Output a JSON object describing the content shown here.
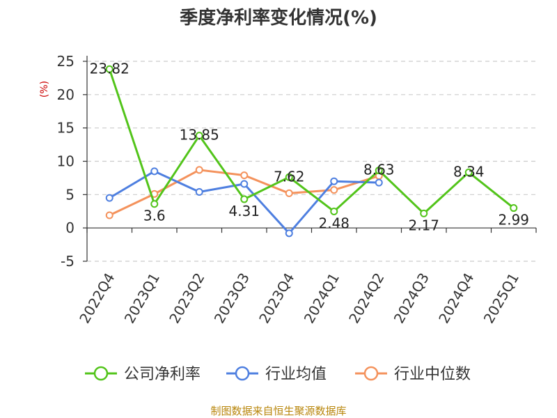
{
  "chart_data": {
    "type": "line",
    "title": "季度净利率变化情况(%)",
    "ylabel": "(%)",
    "ylim": [
      -5,
      25
    ],
    "yticks": [
      -5,
      0,
      5,
      10,
      15,
      20,
      25
    ],
    "grid": true,
    "legend_position": "bottom",
    "categories": [
      "2022Q4",
      "2023Q1",
      "2023Q2",
      "2023Q3",
      "2023Q4",
      "2024Q1",
      "2024Q2",
      "2024Q3",
      "2024Q4",
      "2025Q1"
    ],
    "series": [
      {
        "name": "公司净利率",
        "color": "#52c41a",
        "values": [
          23.82,
          3.6,
          13.85,
          4.31,
          7.62,
          2.48,
          8.63,
          2.17,
          8.34,
          2.99
        ],
        "labels": [
          "23.82",
          "3.6",
          "13.85",
          "4.31",
          "7.62",
          "2.48",
          "8.63",
          "2.17",
          "8.34",
          "2.99"
        ]
      },
      {
        "name": "行业均值",
        "color": "#4e7fe0",
        "values": [
          4.5,
          8.5,
          5.4,
          6.6,
          -0.8,
          7.0,
          6.8,
          null,
          null,
          null
        ]
      },
      {
        "name": "行业中位数",
        "color": "#f4925c",
        "values": [
          1.9,
          5.1,
          8.7,
          7.9,
          5.2,
          5.7,
          7.8,
          null,
          null,
          null
        ]
      }
    ]
  },
  "footer": {
    "source": "制图数据来自恒生聚源数据库"
  }
}
